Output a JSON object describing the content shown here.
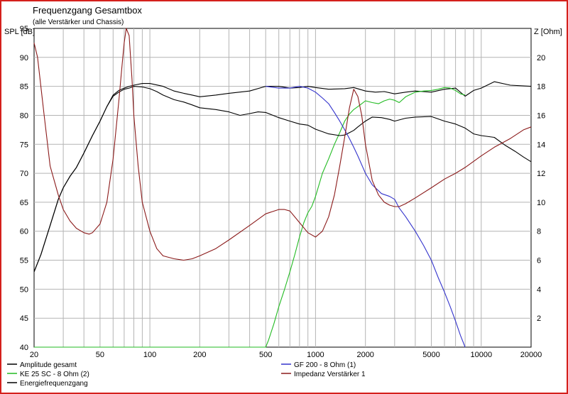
{
  "chart_data": {
    "type": "line",
    "title": "Frequenzgang Gesamtbox",
    "subtitle": "(alle Verstärker und Chassis)",
    "ylabel_left": "SPL [dB]",
    "ylabel_right": "Z [Ohm]",
    "x_scale": "log",
    "xlim": [
      20,
      20000
    ],
    "ylim_left": [
      40,
      95
    ],
    "ylim_right": [
      0,
      22
    ],
    "grid": true,
    "x_ticks": [
      20,
      50,
      100,
      200,
      500,
      1000,
      2000,
      5000,
      10000,
      20000
    ],
    "x_tick_labels": [
      "20",
      "50",
      "100",
      "200",
      "500",
      "1000",
      "2000",
      "5000",
      "10000",
      "20000"
    ],
    "y_ticks_left": [
      40,
      45,
      50,
      55,
      60,
      65,
      70,
      75,
      80,
      85,
      90,
      95
    ],
    "y_tick_labels_left": [
      "40",
      "45",
      "50",
      "55",
      "60",
      "65",
      "70",
      "75",
      "80",
      "85",
      "90",
      "95"
    ],
    "y_ticks_right": [
      2,
      4,
      6,
      8,
      10,
      12,
      14,
      16,
      18,
      20
    ],
    "y_tick_labels_right": [
      "2",
      "4",
      "6",
      "8",
      "10",
      "12",
      "14",
      "16",
      "18",
      "20"
    ],
    "legend_placement": "bottom",
    "series": [
      {
        "name": "Amplitude gesamt",
        "color": "#000000",
        "axis": "left",
        "x": [
          20,
          22,
          25,
          28,
          30,
          33,
          36,
          40,
          45,
          50,
          55,
          60,
          65,
          70,
          75,
          80,
          90,
          100,
          120,
          140,
          160,
          180,
          200,
          250,
          300,
          400,
          500,
          600,
          700,
          800,
          900,
          1000,
          1200,
          1500,
          1700,
          2000,
          2300,
          2600,
          3000,
          3500,
          4000,
          5000,
          6000,
          7000,
          8000,
          9000,
          10000,
          12000,
          15000,
          20000
        ],
        "y": [
          53,
          56,
          61,
          65.5,
          67.5,
          69.5,
          71,
          73.5,
          76.5,
          79,
          81.5,
          83.5,
          84.3,
          84.7,
          85,
          85.2,
          85.5,
          85.5,
          85,
          84.2,
          83.8,
          83.5,
          83.2,
          83.5,
          83.8,
          84.2,
          85,
          85,
          84.7,
          84.8,
          85,
          84.8,
          84.5,
          84.6,
          84.8,
          84.2,
          84,
          84.1,
          83.7,
          84,
          84.2,
          84,
          84.5,
          84.7,
          83.3,
          84.3,
          84.7,
          85.8,
          85.2,
          85
        ]
      },
      {
        "name": "KE 25 SC - 8 Ohm    (2)",
        "color": "#22bb22",
        "axis": "left",
        "x": [
          20,
          100,
          300,
          500,
          520,
          560,
          600,
          650,
          700,
          750,
          800,
          850,
          900,
          950,
          1000,
          1100,
          1200,
          1300,
          1400,
          1500,
          1600,
          1700,
          1800,
          1900,
          2000,
          2200,
          2400,
          2600,
          2800,
          3000,
          3200,
          3500,
          4000,
          4500,
          5000,
          5500,
          6000,
          6500,
          7000,
          7500,
          8000
        ],
        "y": [
          40,
          40,
          40,
          40,
          41.2,
          44,
          47,
          50,
          53,
          56,
          59,
          61.5,
          63.2,
          64.3,
          66,
          70,
          72.5,
          75,
          77,
          79,
          80.2,
          81,
          81.5,
          82,
          82.5,
          82.2,
          82,
          82.5,
          82.8,
          82.6,
          82.2,
          83.2,
          84,
          84.2,
          84.3,
          84.5,
          84.8,
          84.7,
          84.3,
          83.7,
          83.5
        ]
      },
      {
        "name": "Energiefrequenzgang",
        "color": "#000000",
        "axis": "left",
        "x": [
          20,
          22,
          25,
          28,
          30,
          33,
          36,
          40,
          45,
          50,
          55,
          60,
          65,
          70,
          75,
          80,
          90,
          100,
          110,
          120,
          140,
          160,
          180,
          200,
          250,
          300,
          350,
          400,
          450,
          500,
          600,
          700,
          800,
          900,
          1000,
          1200,
          1400,
          1500,
          1600,
          1700,
          1800,
          2000,
          2200,
          2500,
          2800,
          3000,
          3500,
          4000,
          5000,
          6000,
          7000,
          8000,
          9000,
          10000,
          12000,
          14000,
          16000,
          18000,
          20000
        ],
        "y": [
          53,
          56,
          61,
          65.5,
          67.5,
          69.5,
          71,
          73.5,
          76.5,
          79,
          81.5,
          83.3,
          84,
          84.5,
          84.7,
          85,
          84.9,
          84.6,
          84.1,
          83.5,
          82.7,
          82.3,
          81.8,
          81.3,
          81,
          80.6,
          80,
          80.3,
          80.6,
          80.5,
          79.6,
          79,
          78.5,
          78.3,
          77.6,
          76.8,
          76.5,
          76.6,
          77,
          77.4,
          78,
          79,
          79.7,
          79.6,
          79.3,
          79,
          79.5,
          79.7,
          79.8,
          79,
          78.5,
          77.8,
          76.8,
          76.5,
          76.2,
          74.8,
          73.8,
          72.8,
          72
        ]
      },
      {
        "name": "GF 200 - 8 Ohm (1)",
        "color": "#3333cc",
        "axis": "left",
        "x": [
          500,
          600,
          700,
          800,
          900,
          1000,
          1100,
          1200,
          1300,
          1400,
          1500,
          1600,
          1700,
          1800,
          2000,
          2200,
          2500,
          2800,
          3000,
          3200,
          3500,
          4000,
          4500,
          5000,
          5500,
          6000,
          6500,
          7000,
          7500,
          8000
        ],
        "y": [
          85,
          84.7,
          84.7,
          85,
          84.7,
          84,
          83,
          82,
          80.5,
          79,
          77.5,
          76,
          74.5,
          73,
          70,
          68,
          66.5,
          66,
          65.5,
          64,
          62.5,
          60,
          57.5,
          55,
          52,
          49.5,
          47,
          44.5,
          42,
          40
        ]
      },
      {
        "name": "Impedanz Verstärker 1",
        "color": "#8b1a1a",
        "axis": "right",
        "x": [
          20,
          21,
          23,
          25,
          28,
          30,
          33,
          36,
          40,
          43,
          45,
          50,
          55,
          60,
          65,
          68,
          70,
          72,
          75,
          78,
          80,
          85,
          90,
          100,
          110,
          120,
          140,
          160,
          180,
          200,
          250,
          300,
          400,
          500,
          600,
          650,
          700,
          800,
          900,
          1000,
          1100,
          1200,
          1300,
          1400,
          1500,
          1600,
          1700,
          1800,
          1900,
          2000,
          2200,
          2400,
          2600,
          2800,
          3000,
          3200,
          3500,
          4000,
          5000,
          6000,
          7000,
          8000,
          10000,
          12000,
          15000,
          18000,
          20000
        ],
        "y": [
          21,
          20,
          16,
          12.5,
          10.5,
          9.5,
          8.7,
          8.2,
          7.9,
          7.8,
          7.9,
          8.5,
          10,
          13,
          17,
          19.5,
          21,
          22,
          21.5,
          18.5,
          16,
          12.5,
          10,
          8,
          6.8,
          6.3,
          6.1,
          6.0,
          6.1,
          6.3,
          6.8,
          7.4,
          8.4,
          9.2,
          9.5,
          9.5,
          9.4,
          8.6,
          7.9,
          7.6,
          8.0,
          9.0,
          10.5,
          12.5,
          14.5,
          16.5,
          17.8,
          17.3,
          16,
          14,
          11.5,
          10.5,
          10,
          9.8,
          9.7,
          9.7,
          9.9,
          10.3,
          11,
          11.6,
          12,
          12.4,
          13.2,
          13.8,
          14.4,
          15,
          15.2
        ]
      }
    ]
  }
}
